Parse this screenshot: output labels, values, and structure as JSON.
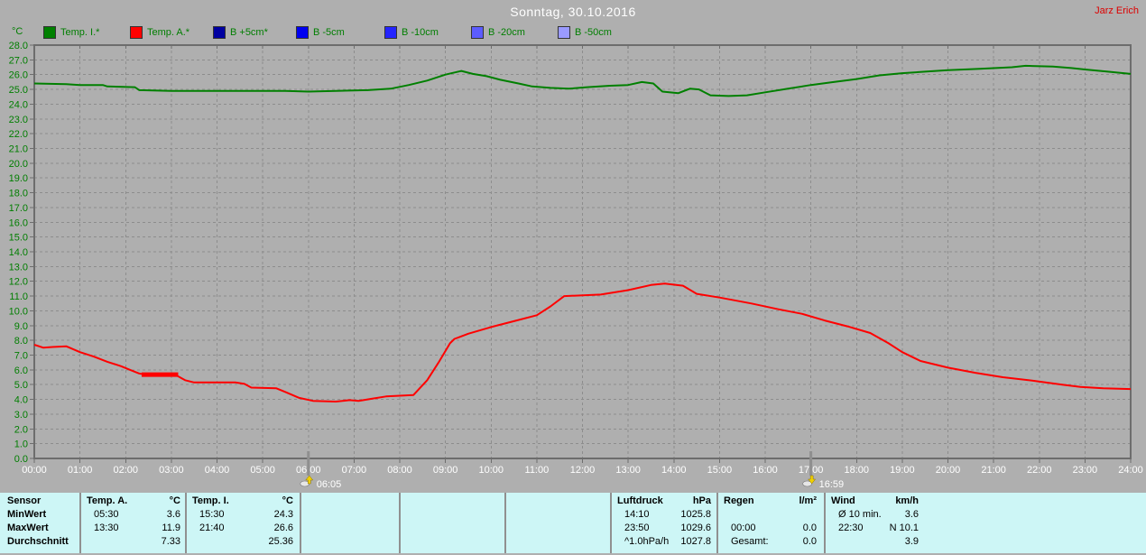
{
  "header": {
    "title": "Sonntag, 30.10.2016",
    "author": "Jarz Erich"
  },
  "chart_data": {
    "type": "line",
    "title": "Sonntag, 30.10.2016",
    "ylabel": "°C",
    "ylim": [
      0.0,
      28.0
    ],
    "y_tick_step": 1.0,
    "y_tick_decimals": 1,
    "xlim_hours": [
      0,
      24
    ],
    "x_tick_step_hours": 1,
    "x_tick_labels": [
      "00:00",
      "01:00",
      "02:00",
      "03:00",
      "04:00",
      "05:00",
      "06:00",
      "07:00",
      "08:00",
      "09:00",
      "10:00",
      "11:00",
      "12:00",
      "13:00",
      "14:00",
      "15:00",
      "16:00",
      "17:00",
      "18:00",
      "19:00",
      "20:00",
      "21:00",
      "22:00",
      "23:00",
      "24:00"
    ],
    "grid": "dashed",
    "legend_position": "top",
    "series": [
      {
        "name": "Temp. I.*",
        "color": "#008000",
        "points": [
          [
            0,
            25.4
          ],
          [
            0.7,
            25.35
          ],
          [
            1,
            25.3
          ],
          [
            1.5,
            25.3
          ],
          [
            1.6,
            25.2
          ],
          [
            2.2,
            25.15
          ],
          [
            2.3,
            24.95
          ],
          [
            3,
            24.9
          ],
          [
            4.5,
            24.9
          ],
          [
            5.5,
            24.9
          ],
          [
            6,
            24.85
          ],
          [
            6.6,
            24.9
          ],
          [
            7.3,
            24.95
          ],
          [
            7.8,
            25.05
          ],
          [
            8.2,
            25.3
          ],
          [
            8.6,
            25.6
          ],
          [
            9,
            26.0
          ],
          [
            9.35,
            26.25
          ],
          [
            9.6,
            26.05
          ],
          [
            9.9,
            25.9
          ],
          [
            10.2,
            25.65
          ],
          [
            10.6,
            25.4
          ],
          [
            10.9,
            25.2
          ],
          [
            11.3,
            25.1
          ],
          [
            11.7,
            25.05
          ],
          [
            12.1,
            25.15
          ],
          [
            12.6,
            25.25
          ],
          [
            13,
            25.3
          ],
          [
            13.3,
            25.5
          ],
          [
            13.55,
            25.4
          ],
          [
            13.75,
            24.85
          ],
          [
            14.1,
            24.75
          ],
          [
            14.35,
            25.05
          ],
          [
            14.55,
            25.0
          ],
          [
            14.8,
            24.6
          ],
          [
            15.2,
            24.55
          ],
          [
            15.6,
            24.6
          ],
          [
            16,
            24.8
          ],
          [
            16.5,
            25.05
          ],
          [
            17,
            25.3
          ],
          [
            17.5,
            25.5
          ],
          [
            18,
            25.7
          ],
          [
            18.5,
            25.95
          ],
          [
            19,
            26.1
          ],
          [
            19.5,
            26.2
          ],
          [
            20,
            26.3
          ],
          [
            20.7,
            26.4
          ],
          [
            21.4,
            26.5
          ],
          [
            21.7,
            26.6
          ],
          [
            22.3,
            26.55
          ],
          [
            22.7,
            26.45
          ],
          [
            23,
            26.35
          ],
          [
            23.5,
            26.2
          ],
          [
            24,
            26.05
          ]
        ]
      },
      {
        "name": "Temp. A.*",
        "color": "#ff0000",
        "points": [
          [
            0,
            7.7
          ],
          [
            0.2,
            7.5
          ],
          [
            0.4,
            7.55
          ],
          [
            0.7,
            7.6
          ],
          [
            1,
            7.2
          ],
          [
            1.3,
            6.9
          ],
          [
            1.6,
            6.55
          ],
          [
            1.9,
            6.25
          ],
          [
            2.1,
            6.0
          ],
          [
            2.3,
            5.75
          ],
          [
            2.4,
            5.7
          ],
          [
            3.1,
            5.65
          ],
          [
            3.3,
            5.3
          ],
          [
            3.5,
            5.15
          ],
          [
            4.4,
            5.15
          ],
          [
            4.6,
            5.05
          ],
          [
            4.75,
            4.8
          ],
          [
            5.3,
            4.75
          ],
          [
            5.5,
            4.5
          ],
          [
            5.8,
            4.1
          ],
          [
            6.1,
            3.9
          ],
          [
            6.6,
            3.85
          ],
          [
            6.9,
            3.95
          ],
          [
            7.1,
            3.9
          ],
          [
            7.4,
            4.05
          ],
          [
            7.7,
            4.2
          ],
          [
            8,
            4.25
          ],
          [
            8.3,
            4.3
          ],
          [
            8.6,
            5.3
          ],
          [
            8.85,
            6.5
          ],
          [
            9.1,
            7.8
          ],
          [
            9.2,
            8.1
          ],
          [
            9.5,
            8.45
          ],
          [
            10,
            8.9
          ],
          [
            10.5,
            9.3
          ],
          [
            11,
            9.7
          ],
          [
            11.3,
            10.3
          ],
          [
            11.6,
            11.0
          ],
          [
            12.4,
            11.1
          ],
          [
            13,
            11.4
          ],
          [
            13.5,
            11.75
          ],
          [
            13.8,
            11.85
          ],
          [
            14.2,
            11.7
          ],
          [
            14.5,
            11.15
          ],
          [
            15,
            10.9
          ],
          [
            15.7,
            10.5
          ],
          [
            16.3,
            10.1
          ],
          [
            16.8,
            9.8
          ],
          [
            17.3,
            9.35
          ],
          [
            17.8,
            8.95
          ],
          [
            18.3,
            8.5
          ],
          [
            18.7,
            7.8
          ],
          [
            19,
            7.2
          ],
          [
            19.4,
            6.6
          ],
          [
            20,
            6.15
          ],
          [
            20.6,
            5.8
          ],
          [
            21.2,
            5.5
          ],
          [
            21.9,
            5.25
          ],
          [
            22.5,
            5.0
          ],
          [
            22.9,
            4.85
          ],
          [
            23.4,
            4.75
          ],
          [
            24,
            4.7
          ]
        ],
        "thick_segment": {
          "y": 5.68,
          "from": 2.35,
          "to": 3.15
        }
      },
      {
        "name": "B +5cm*",
        "color": "#0000a0",
        "points": []
      },
      {
        "name": "B -5cm",
        "color": "#0000f0",
        "points": []
      },
      {
        "name": "B -10cm",
        "color": "#2424ff",
        "points": []
      },
      {
        "name": "B -20cm",
        "color": "#5c5cff",
        "points": []
      },
      {
        "name": "B -50cm",
        "color": "#9a9aff",
        "points": []
      }
    ],
    "annotations": [
      {
        "name": "sunrise",
        "hour": 6.0,
        "label": "06:05"
      },
      {
        "name": "sunset",
        "hour": 17.0,
        "label": "16:59"
      }
    ]
  },
  "stats_table": {
    "row_labels": [
      "Sensor",
      "MinWert",
      "MaxWert",
      "Durchschnitt"
    ],
    "columns": [
      {
        "name": "Temp. A.",
        "unit": "°C",
        "rows": [
          [
            "05:30",
            "3.6"
          ],
          [
            "13:30",
            "11.9"
          ],
          [
            "",
            "7.33"
          ]
        ]
      },
      {
        "name": "Temp. I.",
        "unit": "°C",
        "rows": [
          [
            "15:30",
            "24.3"
          ],
          [
            "21:40",
            "26.6"
          ],
          [
            "",
            "25.36"
          ]
        ]
      },
      {
        "name": "",
        "unit": "",
        "rows": [
          [
            "",
            ""
          ],
          [
            "",
            ""
          ],
          [
            "",
            ""
          ]
        ]
      },
      {
        "name": "",
        "unit": "",
        "rows": [
          [
            "",
            ""
          ],
          [
            "",
            ""
          ],
          [
            "",
            ""
          ]
        ]
      },
      {
        "name": "",
        "unit": "",
        "rows": [
          [
            "",
            ""
          ],
          [
            "",
            ""
          ],
          [
            "",
            ""
          ]
        ]
      },
      {
        "name": "Luftdruck",
        "unit": "hPa",
        "rows": [
          [
            "14:10",
            "1025.8"
          ],
          [
            "23:50",
            "1029.6"
          ],
          [
            "^1.0hPa/h",
            "1027.8"
          ]
        ]
      },
      {
        "name": "Regen",
        "unit": "l/m²",
        "rows": [
          [
            "",
            ""
          ],
          [
            "00:00",
            "0.0"
          ],
          [
            "Gesamt:",
            "0.0"
          ]
        ]
      },
      {
        "name": "Wind",
        "unit": "km/h",
        "rows": [
          [
            "Ø 10 min.",
            "3.6"
          ],
          [
            "22:30",
            "N 10.1"
          ],
          [
            "",
            "3.9"
          ]
        ]
      }
    ]
  },
  "colors": {
    "background": "#afafaf",
    "grid": "#8d8d8d",
    "frame": "#6d6d6d",
    "y_labels": "#007e00",
    "x_labels": "#ffffff",
    "table_background": "#cdf6f6",
    "sun_arrow": "#f0d000"
  }
}
